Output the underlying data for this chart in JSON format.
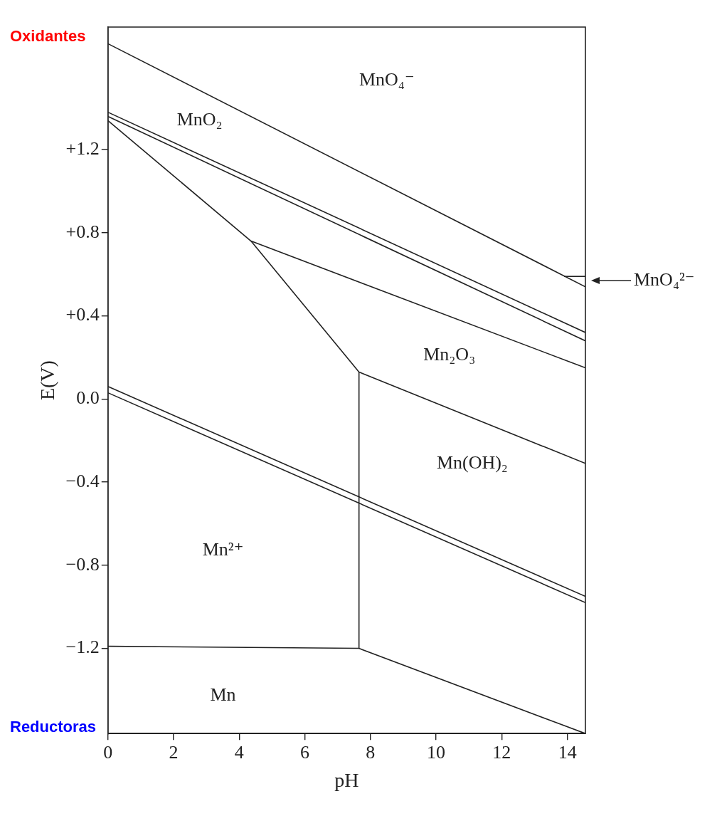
{
  "chart_data": {
    "type": "line",
    "xlabel": "pH",
    "ylabel": "E(V)",
    "xlim": [
      0,
      14.55
    ],
    "ylim": [
      -1.61,
      1.79
    ],
    "xticks": [
      0,
      2,
      4,
      6,
      8,
      10,
      12,
      14
    ],
    "yticks": [
      {
        "value": 1.2,
        "label": "+1.2"
      },
      {
        "value": 0.8,
        "label": "+0.8"
      },
      {
        "value": 0.4,
        "label": "+0.4"
      },
      {
        "value": 0,
        "label": "0.0"
      },
      {
        "value": -0.4,
        "label": "−0.4"
      },
      {
        "value": -0.8,
        "label": "−0.8"
      },
      {
        "value": -1.2,
        "label": "−1.2"
      }
    ],
    "grid": false,
    "legend": false,
    "marker": "none",
    "line_style": "solid",
    "series": [
      {
        "color": "#222222",
        "x": [
          0,
          14.55
        ],
        "values": [
          1.71,
          0.54
        ]
      },
      {
        "color": "#222222",
        "x": [
          13.9,
          14.55
        ],
        "values": [
          0.59,
          0.59
        ]
      },
      {
        "color": "#222222",
        "x": [
          0,
          14.55
        ],
        "values": [
          1.38,
          0.32
        ]
      },
      {
        "color": "#222222",
        "x": [
          0,
          14.55
        ],
        "values": [
          1.36,
          0.28
        ]
      },
      {
        "color": "#222222",
        "x": [
          0,
          4.36,
          14.55
        ],
        "values": [
          1.34,
          0.76,
          0.15
        ]
      },
      {
        "color": "#222222",
        "x": [
          4.36,
          7.65,
          14.55
        ],
        "values": [
          0.76,
          0.13,
          -0.31
        ]
      },
      {
        "color": "#222222",
        "x": [
          7.65,
          7.65
        ],
        "values": [
          0.13,
          -1.2
        ]
      },
      {
        "color": "#222222",
        "x": [
          0,
          7.65,
          14.55
        ],
        "values": [
          -1.19,
          -1.2,
          -1.61
        ]
      },
      {
        "color": "#222222",
        "x": [
          0,
          14.55
        ],
        "values": [
          0.06,
          -0.95
        ]
      },
      {
        "color": "#222222",
        "x": [
          0,
          14.55
        ],
        "values": [
          0.03,
          -0.98
        ]
      }
    ],
    "annotations": [
      "Oxidantes",
      "Reductoras",
      "MnO₄⁻",
      "MnO₂",
      "Mn₂O₃",
      "Mn(OH)₂",
      "Mn²⁺",
      "Mn",
      "MnO₄²⁻"
    ]
  }
}
